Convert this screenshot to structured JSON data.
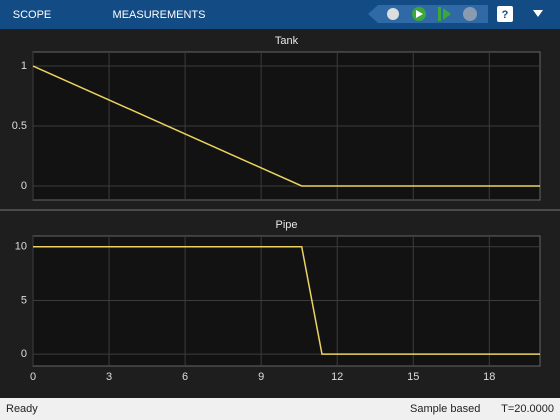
{
  "toolbar": {
    "tabs": [
      "SCOPE",
      "MEASUREMENTS"
    ]
  },
  "status": {
    "state": "Ready",
    "mode": "Sample based",
    "time": "T=20.0000"
  },
  "chart_data": [
    {
      "type": "line",
      "title": "Tank",
      "x": [
        0,
        10.6,
        20
      ],
      "series": [
        {
          "name": "Tank",
          "color": "#ecd35f",
          "values": [
            1,
            0,
            0
          ]
        }
      ],
      "xlim": [
        0,
        20
      ],
      "xticks": [
        0,
        3,
        6,
        9,
        12,
        15,
        18
      ],
      "ylim": [
        -0.1167,
        1.1167
      ],
      "yticks": [
        0,
        0.5,
        1
      ],
      "grid": true
    },
    {
      "type": "line",
      "title": "Pipe",
      "x": [
        0,
        10.6,
        11.4,
        20
      ],
      "series": [
        {
          "name": "Pipe",
          "color": "#ecd35f",
          "values": [
            10,
            10,
            0,
            0
          ]
        }
      ],
      "xlim": [
        0,
        20
      ],
      "xticks": [
        0,
        3,
        6,
        9,
        12,
        15,
        18
      ],
      "ylim": [
        -1.1,
        11
      ],
      "yticks": [
        0,
        5,
        10
      ],
      "grid": true
    }
  ]
}
